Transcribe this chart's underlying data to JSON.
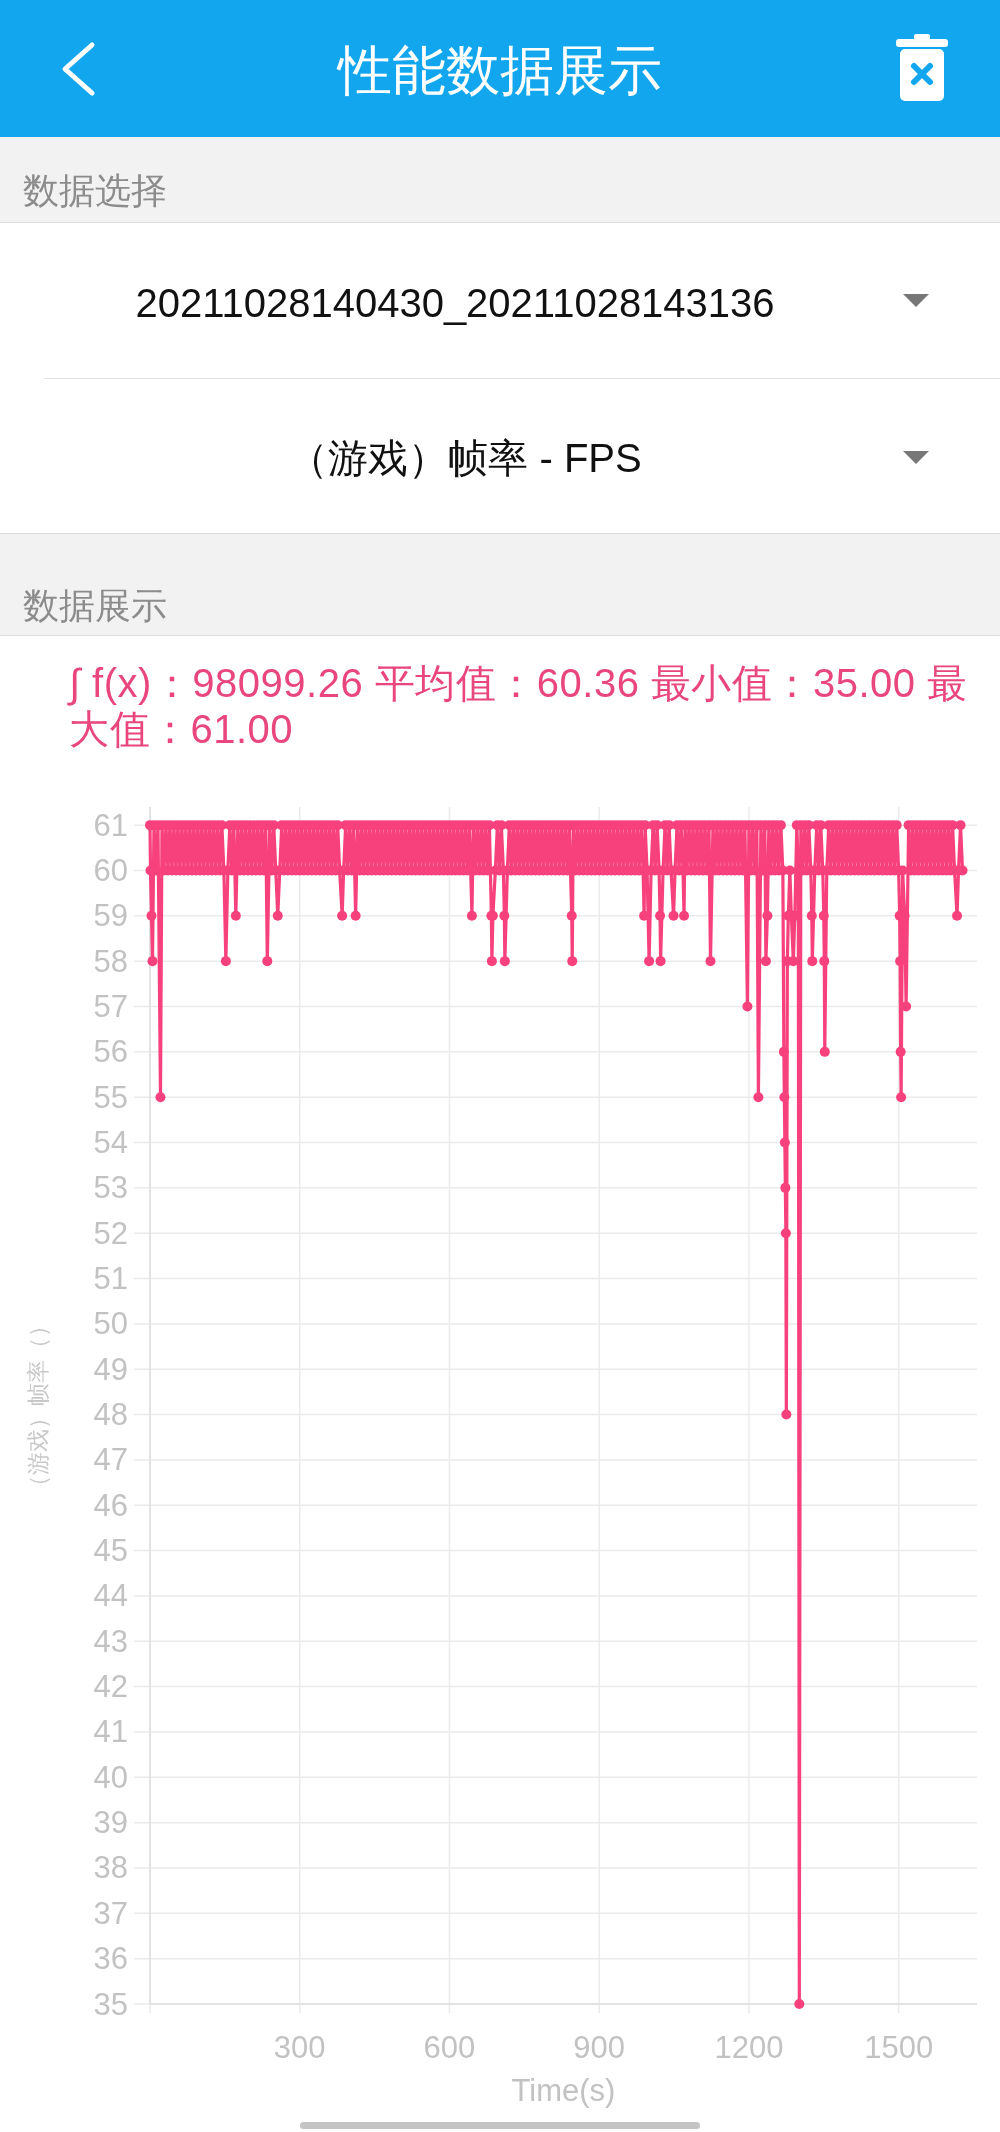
{
  "chart_data": {
    "type": "line",
    "title": "性能数据展示",
    "subtitle": "∫ f(x)：98099.26 平均值：60.36 最小值：35.00 最大值：61.00",
    "annotations": [
      "数据选择",
      "20211028140430_20211028143136",
      "（游戏）帧率 - FPS",
      "数据展示"
    ],
    "xlabel": "Time(s)",
    "ylabel": "（游戏）帧率（）",
    "xlim": [
      0,
      1657
    ],
    "xticks": [
      {
        "value": 0,
        "label": null
      },
      300,
      600,
      900,
      1200,
      1500
    ],
    "ylim": [
      35,
      61.4
    ],
    "yticks": [
      35,
      36,
      37,
      38,
      39,
      40,
      41,
      42,
      43,
      44,
      45,
      46,
      47,
      48,
      49,
      50,
      51,
      52,
      53,
      54,
      55,
      56,
      57,
      58,
      59,
      60,
      61
    ],
    "grid": true,
    "marker": "circle",
    "line_style": "solid",
    "x": [
      0,
      1,
      3,
      5,
      8,
      12,
      16,
      21,
      24,
      28,
      32,
      36,
      40,
      44,
      48,
      52,
      56,
      60,
      64,
      68,
      72,
      76,
      80,
      84,
      88,
      92,
      96,
      100,
      104,
      108,
      112,
      116,
      120,
      124,
      128,
      132,
      136,
      140,
      144,
      148,
      152,
      156,
      160,
      164,
      168,
      172,
      176,
      180,
      184,
      188,
      192,
      196,
      200,
      204,
      208,
      212,
      216,
      220,
      224,
      228,
      232,
      235,
      240,
      244,
      248,
      252,
      256,
      260,
      264,
      268,
      272,
      276,
      280,
      284,
      288,
      292,
      296,
      300,
      304,
      308,
      312,
      316,
      320,
      324,
      328,
      332,
      336,
      340,
      344,
      348,
      352,
      356,
      360,
      364,
      368,
      372,
      376,
      380,
      385,
      388,
      392,
      396,
      400,
      404,
      408,
      412,
      416,
      420,
      424,
      428,
      432,
      436,
      440,
      444,
      448,
      452,
      456,
      460,
      464,
      468,
      472,
      476,
      480,
      484,
      488,
      492,
      496,
      500,
      504,
      508,
      512,
      516,
      520,
      524,
      528,
      532,
      536,
      540,
      544,
      548,
      552,
      556,
      560,
      564,
      568,
      572,
      576,
      580,
      584,
      588,
      592,
      596,
      600,
      604,
      608,
      612,
      616,
      620,
      624,
      628,
      632,
      636,
      640,
      645,
      648,
      652,
      656,
      660,
      664,
      668,
      672,
      676,
      680,
      684,
      685,
      687,
      692,
      696,
      700,
      704,
      708,
      710,
      711,
      716,
      720,
      724,
      728,
      732,
      736,
      740,
      744,
      748,
      752,
      756,
      760,
      764,
      768,
      772,
      776,
      780,
      784,
      788,
      792,
      796,
      800,
      804,
      808,
      812,
      816,
      820,
      824,
      828,
      832,
      836,
      840,
      845,
      846,
      848,
      852,
      856,
      860,
      864,
      868,
      872,
      876,
      880,
      884,
      888,
      892,
      896,
      900,
      904,
      908,
      912,
      916,
      920,
      924,
      928,
      932,
      936,
      940,
      944,
      948,
      952,
      956,
      960,
      964,
      968,
      972,
      976,
      980,
      984,
      988,
      990,
      992,
      996,
      1000,
      1004,
      1008,
      1012,
      1016,
      1020,
      1022,
      1023,
      1028,
      1032,
      1036,
      1040,
      1044,
      1049,
      1052,
      1056,
      1060,
      1064,
      1068,
      1070,
      1072,
      1076,
      1080,
      1084,
      1088,
      1092,
      1096,
      1100,
      1104,
      1108,
      1112,
      1116,
      1120,
      1123,
      1128,
      1132,
      1136,
      1140,
      1144,
      1148,
      1152,
      1156,
      1160,
      1164,
      1168,
      1172,
      1176,
      1180,
      1184,
      1188,
      1192,
      1197,
      1200,
      1204,
      1208,
      1212,
      1216,
      1219,
      1224,
      1228,
      1232,
      1234,
      1237,
      1240,
      1244,
      1248,
      1252,
      1256,
      1260,
      1264,
      1268,
      1270,
      1271,
      1272,
      1273,
      1274,
      1275,
      1277,
      1279,
      1282,
      1285,
      1289,
      1292,
      1296,
      1299,
      1301,
      1304,
      1308,
      1312,
      1316,
      1320,
      1324,
      1326,
      1327,
      1332,
      1336,
      1340,
      1344,
      1348,
      1350,
      1351,
      1352,
      1356,
      1360,
      1364,
      1368,
      1372,
      1376,
      1380,
      1384,
      1388,
      1392,
      1396,
      1400,
      1404,
      1408,
      1412,
      1416,
      1420,
      1424,
      1428,
      1432,
      1436,
      1440,
      1444,
      1448,
      1452,
      1456,
      1460,
      1464,
      1468,
      1472,
      1476,
      1480,
      1484,
      1488,
      1492,
      1496,
      1500,
      1502,
      1503,
      1504,
      1505,
      1508,
      1512,
      1515,
      1520,
      1524,
      1528,
      1532,
      1536,
      1540,
      1544,
      1548,
      1552,
      1556,
      1560,
      1564,
      1568,
      1572,
      1576,
      1580,
      1584,
      1588,
      1592,
      1596,
      1600,
      1604,
      1608,
      1612,
      1617,
      1620,
      1624,
      1628
    ],
    "series": [
      {
        "color": "#f7417d",
        "values": [
          61,
          60,
          59,
          58,
          61,
          60,
          61,
          55,
          61,
          60,
          61,
          60,
          61,
          60,
          61,
          60,
          61,
          60,
          61,
          60,
          61,
          60,
          61,
          60,
          61,
          60,
          61,
          60,
          61,
          60,
          61,
          60,
          61,
          60,
          61,
          60,
          61,
          60,
          61,
          60,
          58,
          60,
          61,
          60,
          61,
          59,
          61,
          60,
          61,
          60,
          61,
          60,
          61,
          60,
          61,
          60,
          61,
          60,
          61,
          60,
          61,
          58,
          61,
          60,
          61,
          60,
          59,
          60,
          61,
          60,
          61,
          60,
          61,
          60,
          61,
          60,
          61,
          60,
          61,
          60,
          61,
          60,
          61,
          60,
          61,
          60,
          61,
          60,
          61,
          60,
          61,
          60,
          61,
          60,
          61,
          60,
          61,
          60,
          59,
          60,
          61,
          60,
          61,
          60,
          61,
          59,
          61,
          60,
          61,
          60,
          61,
          60,
          61,
          60,
          61,
          60,
          61,
          60,
          61,
          60,
          61,
          60,
          61,
          60,
          61,
          60,
          61,
          60,
          61,
          60,
          61,
          60,
          61,
          60,
          61,
          60,
          61,
          60,
          61,
          60,
          61,
          60,
          61,
          60,
          61,
          60,
          61,
          60,
          61,
          60,
          61,
          60,
          61,
          60,
          61,
          60,
          61,
          60,
          61,
          60,
          61,
          60,
          61,
          59,
          61,
          60,
          61,
          60,
          61,
          60,
          61,
          60,
          61,
          59,
          58,
          59,
          60,
          61,
          60,
          61,
          60,
          59,
          58,
          60,
          61,
          60,
          61,
          60,
          61,
          60,
          61,
          60,
          61,
          60,
          61,
          60,
          61,
          60,
          61,
          60,
          61,
          60,
          61,
          60,
          61,
          60,
          61,
          60,
          61,
          60,
          61,
          60,
          61,
          60,
          61,
          59,
          58,
          61,
          60,
          61,
          60,
          61,
          60,
          61,
          60,
          61,
          60,
          61,
          60,
          61,
          60,
          61,
          60,
          61,
          60,
          61,
          60,
          61,
          60,
          61,
          60,
          61,
          60,
          61,
          60,
          61,
          60,
          61,
          60,
          61,
          60,
          61,
          60,
          59,
          61,
          60,
          58,
          60,
          61,
          60,
          61,
          60,
          59,
          58,
          60,
          61,
          60,
          61,
          60,
          59,
          60,
          61,
          60,
          61,
          60,
          59,
          61,
          60,
          61,
          60,
          61,
          60,
          61,
          60,
          61,
          60,
          61,
          60,
          61,
          58,
          61,
          60,
          61,
          60,
          61,
          60,
          61,
          60,
          61,
          60,
          61,
          60,
          61,
          60,
          61,
          60,
          61,
          57,
          61,
          60,
          61,
          60,
          61,
          55,
          61,
          60,
          61,
          58,
          59,
          61,
          60,
          61,
          60,
          61,
          60,
          61,
          60,
          56,
          55,
          54,
          53,
          52,
          48,
          58,
          59,
          60,
          59,
          58,
          59,
          61,
          60,
          35,
          61,
          60,
          61,
          60,
          61,
          60,
          59,
          58,
          60,
          61,
          60,
          61,
          60,
          59,
          58,
          56,
          60,
          61,
          60,
          61,
          60,
          61,
          60,
          61,
          60,
          61,
          60,
          61,
          60,
          61,
          60,
          61,
          60,
          61,
          60,
          61,
          60,
          61,
          60,
          61,
          60,
          61,
          60,
          61,
          60,
          61,
          60,
          61,
          60,
          61,
          60,
          61,
          60,
          59,
          58,
          56,
          55,
          60,
          59,
          57,
          61,
          60,
          61,
          60,
          61,
          60,
          61,
          60,
          61,
          60,
          61,
          60,
          61,
          60,
          61,
          60,
          61,
          60,
          61,
          60,
          61,
          60,
          61,
          60,
          59,
          60,
          61,
          60
        ]
      }
    ]
  }
}
